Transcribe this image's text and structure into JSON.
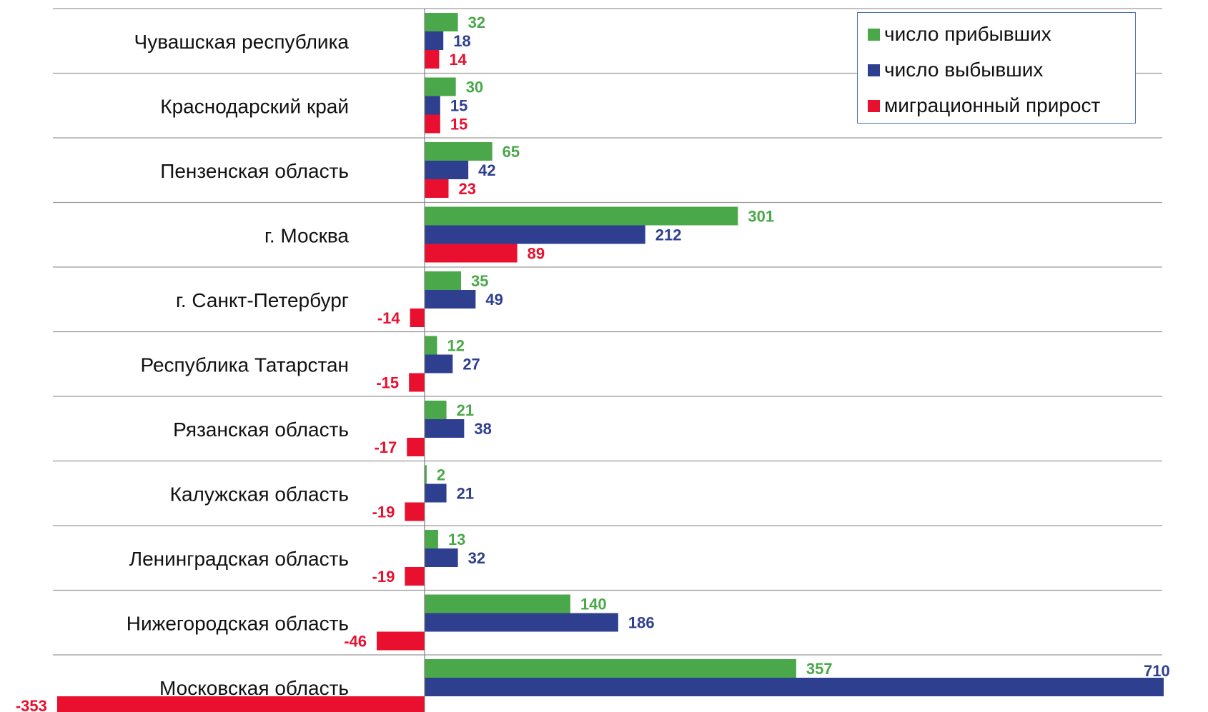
{
  "chart_data": {
    "type": "bar",
    "orientation": "horizontal",
    "categories": [
      "Чувашская республика",
      "Краснодарский край",
      "Пензенская область",
      "г. Москва",
      "г. Санкт-Петербург",
      "Республика Татарстан",
      "Рязанская область",
      "Калужская область",
      "Ленинградская область",
      "Нижегородская область",
      "Московская область"
    ],
    "series": [
      {
        "name": "число прибывших",
        "color": "#4aa84a",
        "values": [
          32,
          30,
          65,
          301,
          35,
          12,
          21,
          2,
          13,
          140,
          357
        ]
      },
      {
        "name": "число выбывших",
        "color": "#2e3f8f",
        "values": [
          18,
          15,
          42,
          212,
          49,
          27,
          38,
          21,
          32,
          186,
          710
        ]
      },
      {
        "name": "миграционный прирост",
        "color": "#e8102e",
        "values": [
          14,
          15,
          23,
          89,
          -14,
          -15,
          -17,
          -19,
          -19,
          -46,
          -353
        ]
      }
    ],
    "xlim": [
      -353,
      710
    ],
    "grid": true,
    "legend_position": "top-right"
  },
  "legend": {
    "items": [
      {
        "label": "число прибывших",
        "color": "#4aa84a"
      },
      {
        "label": "число выбывших",
        "color": "#2e3f8f"
      },
      {
        "label": "миграционный прирост",
        "color": "#e8102e"
      }
    ]
  }
}
